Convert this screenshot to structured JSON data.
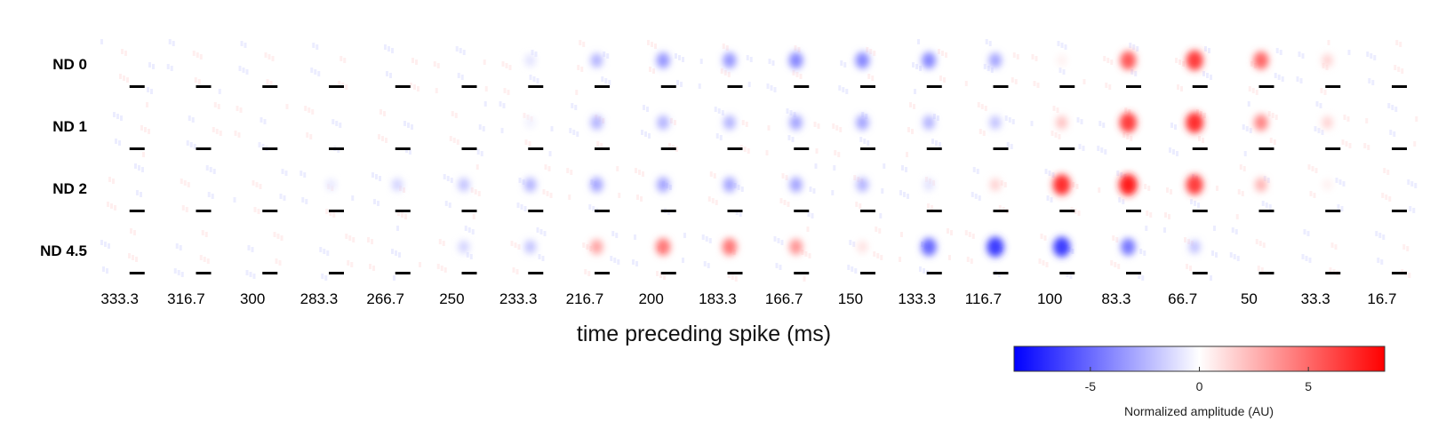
{
  "chart_data": {
    "type": "heatmap",
    "description_rows_are_conditions": true,
    "rows": [
      "ND 0",
      "ND 1",
      "ND 2",
      "ND 4.5"
    ],
    "time_bins_ms": [
      "333.3",
      "316.7",
      "300",
      "283.3",
      "266.7",
      "250",
      "233.3",
      "216.7",
      "200",
      "183.3",
      "166.7",
      "150",
      "133.3",
      "116.7",
      "100",
      "83.3",
      "66.7",
      "50",
      "33.3",
      "16.7"
    ],
    "xlabel": "time preceding spike (ms)",
    "colorbar": {
      "label": "Normalized amplitude (AU)",
      "ticks": [
        -5,
        0,
        5
      ],
      "range": [
        -8.5,
        8.5
      ],
      "low_color": "#0000ff",
      "mid_color": "#ffffff",
      "high_color": "#ff0000"
    },
    "peak_amplitude": [
      [
        0,
        0,
        0,
        0,
        0,
        0,
        -1.0,
        -2.5,
        -3.5,
        -3.5,
        -4.0,
        -4.0,
        -4.0,
        -3.0,
        0.5,
        5.5,
        6.5,
        5.0,
        1.5,
        0
      ],
      [
        0,
        0,
        0,
        0,
        0,
        0,
        -0.5,
        -2.5,
        -2.5,
        -2.5,
        -3.0,
        -3.0,
        -2.5,
        -2.0,
        2.0,
        6.5,
        7.0,
        4.0,
        1.5,
        0
      ],
      [
        0,
        0,
        0,
        -0.8,
        -1.5,
        -2.0,
        -2.5,
        -3.0,
        -3.0,
        -3.0,
        -3.0,
        -2.5,
        -1.0,
        1.5,
        7.0,
        7.5,
        6.5,
        2.5,
        0.5,
        0
      ],
      [
        0,
        0,
        0,
        0,
        0,
        -1.5,
        -2.0,
        3.0,
        4.5,
        4.5,
        3.5,
        1.0,
        -5.0,
        -6.5,
        -6.5,
        -4.5,
        -2.0,
        0,
        0,
        0
      ]
    ]
  }
}
